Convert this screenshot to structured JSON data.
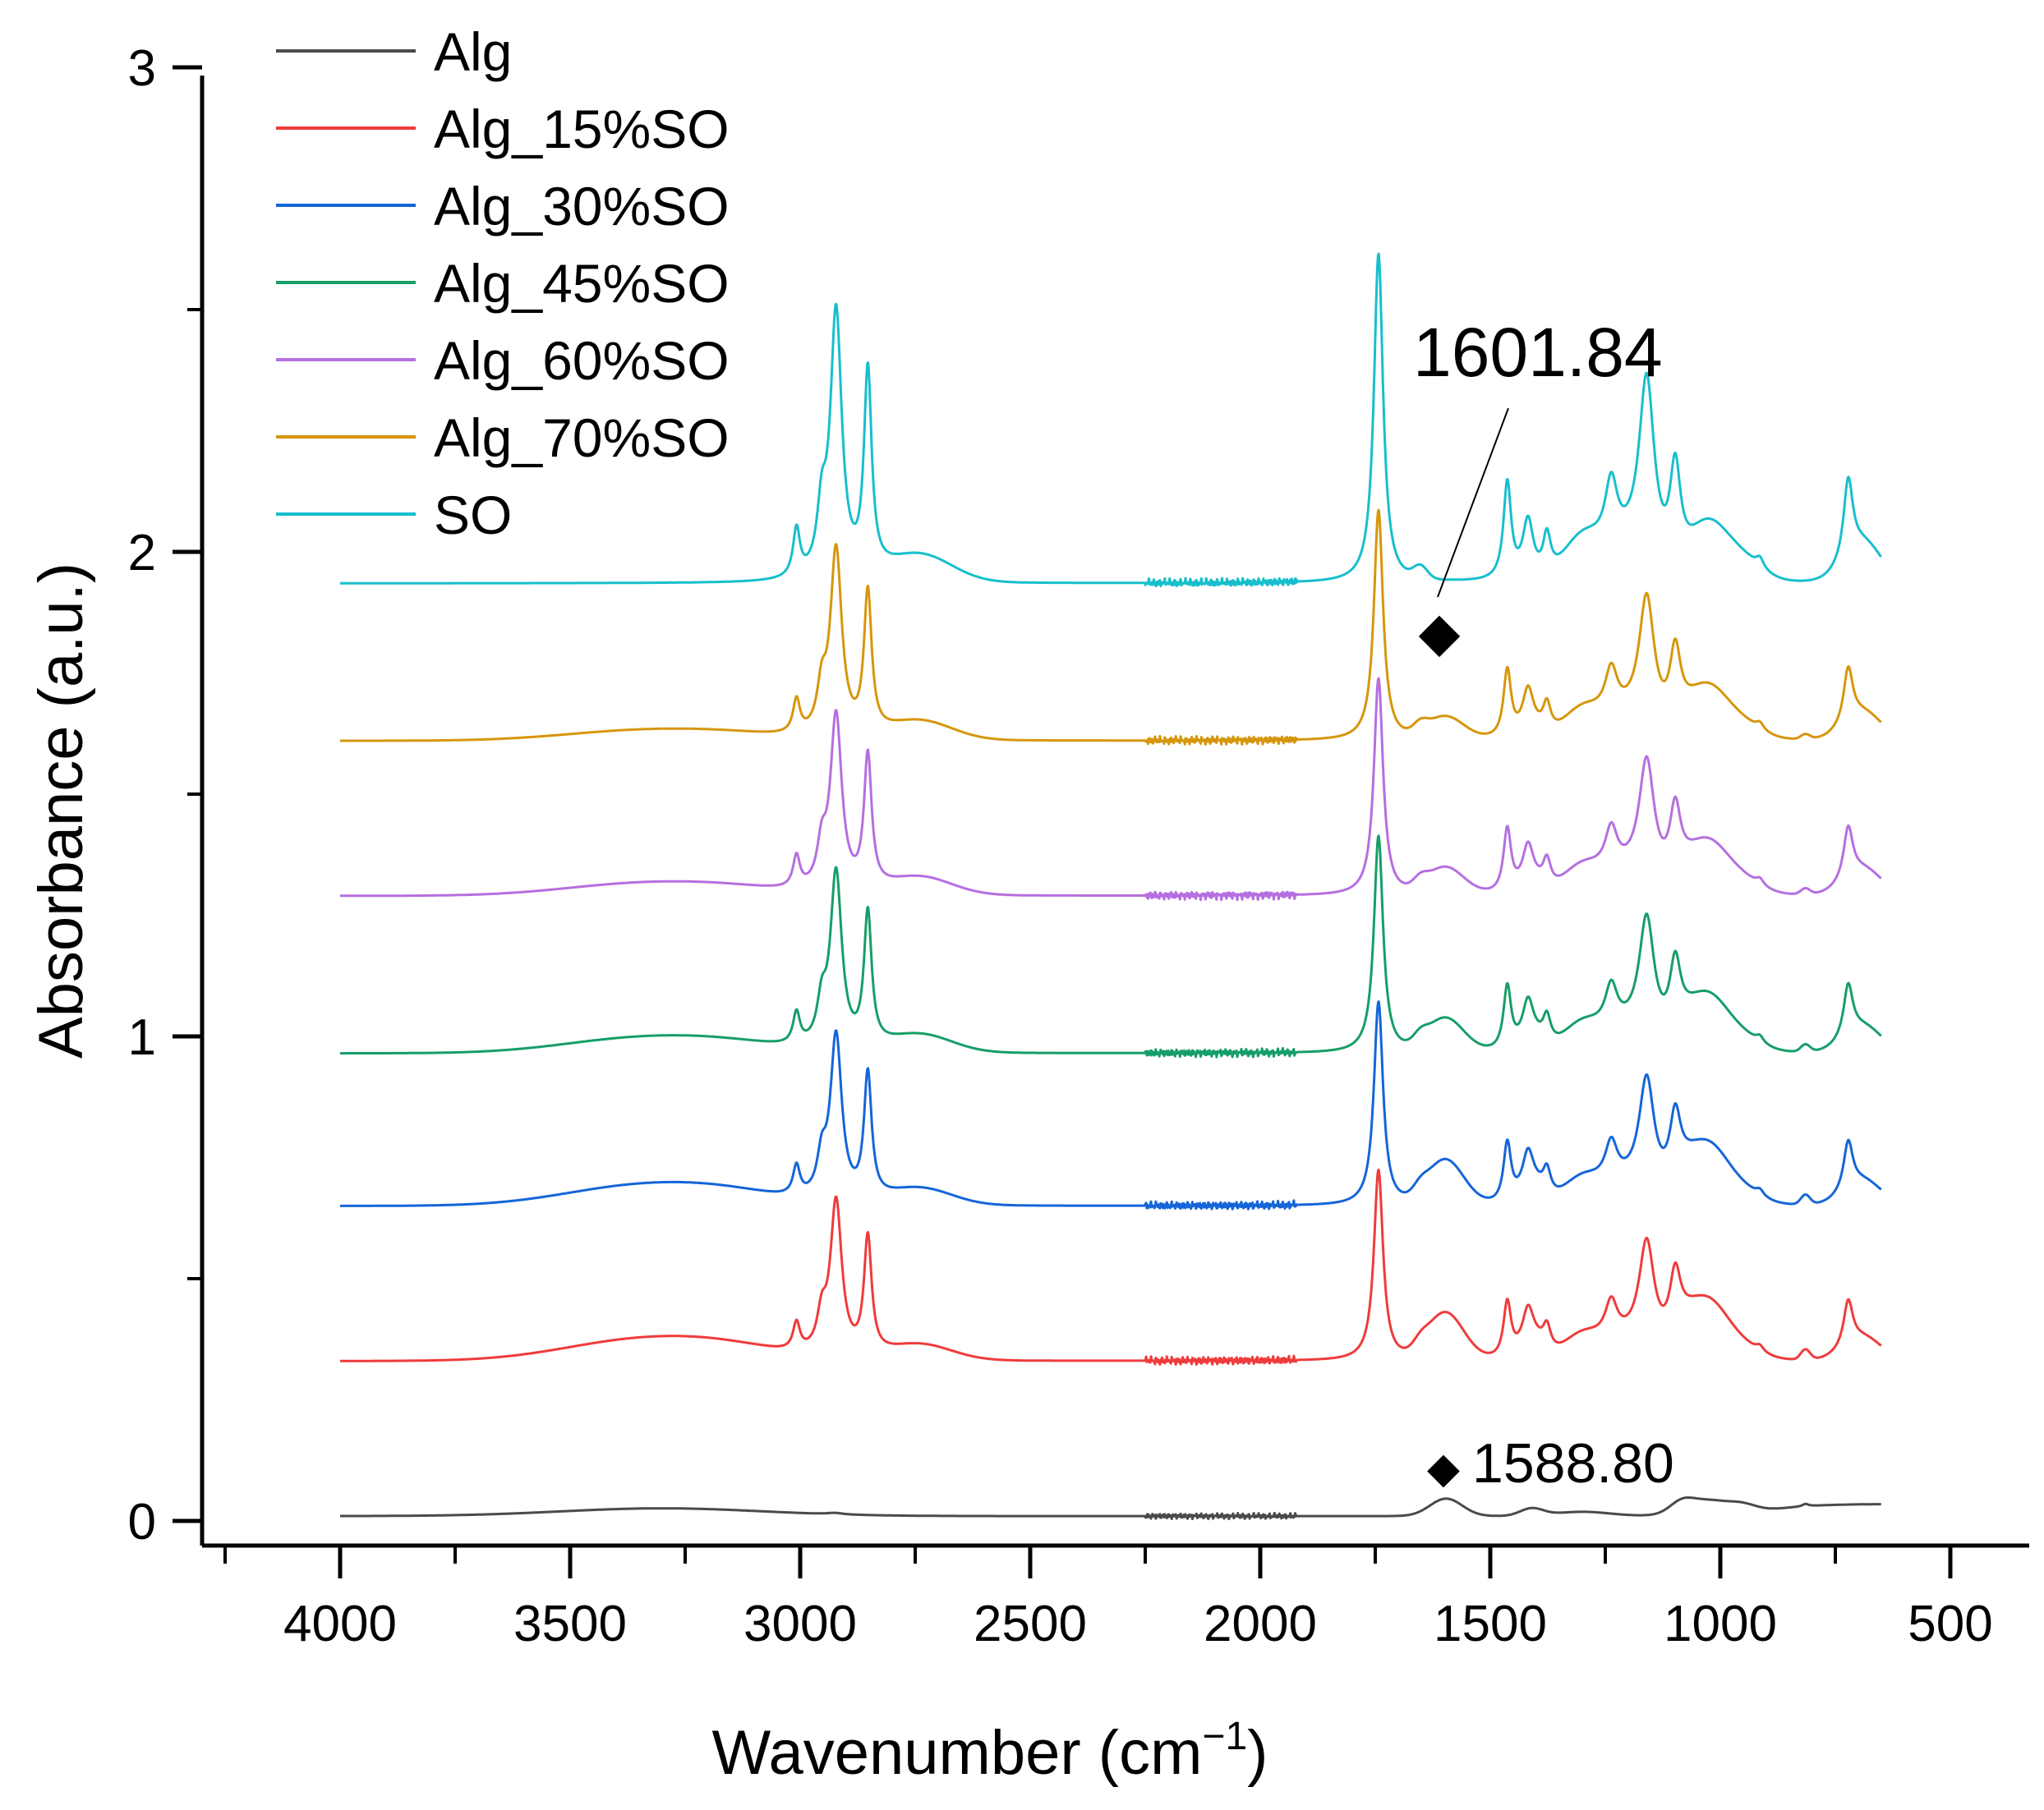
{
  "chart_data": {
    "type": "line",
    "title": "",
    "xlabel": "Wavenumber (cm",
    "xlabel_sup": "−1",
    "xlabel_close": ")",
    "ylabel": "Absorbance (a.u.)",
    "xlim": [
      4250,
      300
    ],
    "ylim": [
      -0.05,
      3.0
    ],
    "xticks": [
      4000,
      3500,
      3000,
      2500,
      2000,
      1500,
      1000,
      500
    ],
    "xtick_labels": [
      "4000",
      "3500",
      "3000",
      "2500",
      "2000",
      "1500",
      "1000",
      "500"
    ],
    "yticks": [
      0,
      1,
      2,
      3
    ],
    "ytick_labels": [
      "0",
      "1",
      "2",
      "3"
    ],
    "legend_position": "top-left",
    "series": [
      {
        "name": "Alg",
        "color": "#4a4a4a",
        "offset": 0.01,
        "profile": "alg"
      },
      {
        "name": "Alg_15%SO",
        "color": "#ef3b3b",
        "offset": 0.33,
        "profile": "mix",
        "oil": 0.58,
        "alg": 0.42
      },
      {
        "name": "Alg_30%SO",
        "color": "#1565d8",
        "offset": 0.65,
        "profile": "mix",
        "oil": 0.62,
        "alg": 0.4
      },
      {
        "name": "Alg_45%SO",
        "color": "#169e68",
        "offset": 0.965,
        "profile": "mix",
        "oil": 0.66,
        "alg": 0.3
      },
      {
        "name": "Alg_60%SO",
        "color": "#b56fe0",
        "offset": 1.29,
        "profile": "mix",
        "oil": 0.66,
        "alg": 0.24
      },
      {
        "name": "Alg_70%SO",
        "color": "#d6960c",
        "offset": 1.61,
        "profile": "mix",
        "oil": 0.7,
        "alg": 0.2
      },
      {
        "name": "SO",
        "color": "#17bfcc",
        "offset": 1.935,
        "profile": "so"
      }
    ],
    "annotations": [
      {
        "text": "1601.84",
        "marker": "◆",
        "x": 1601.84
      },
      {
        "text": "1588.80",
        "marker": "◆",
        "x": 1588.8
      }
    ]
  }
}
